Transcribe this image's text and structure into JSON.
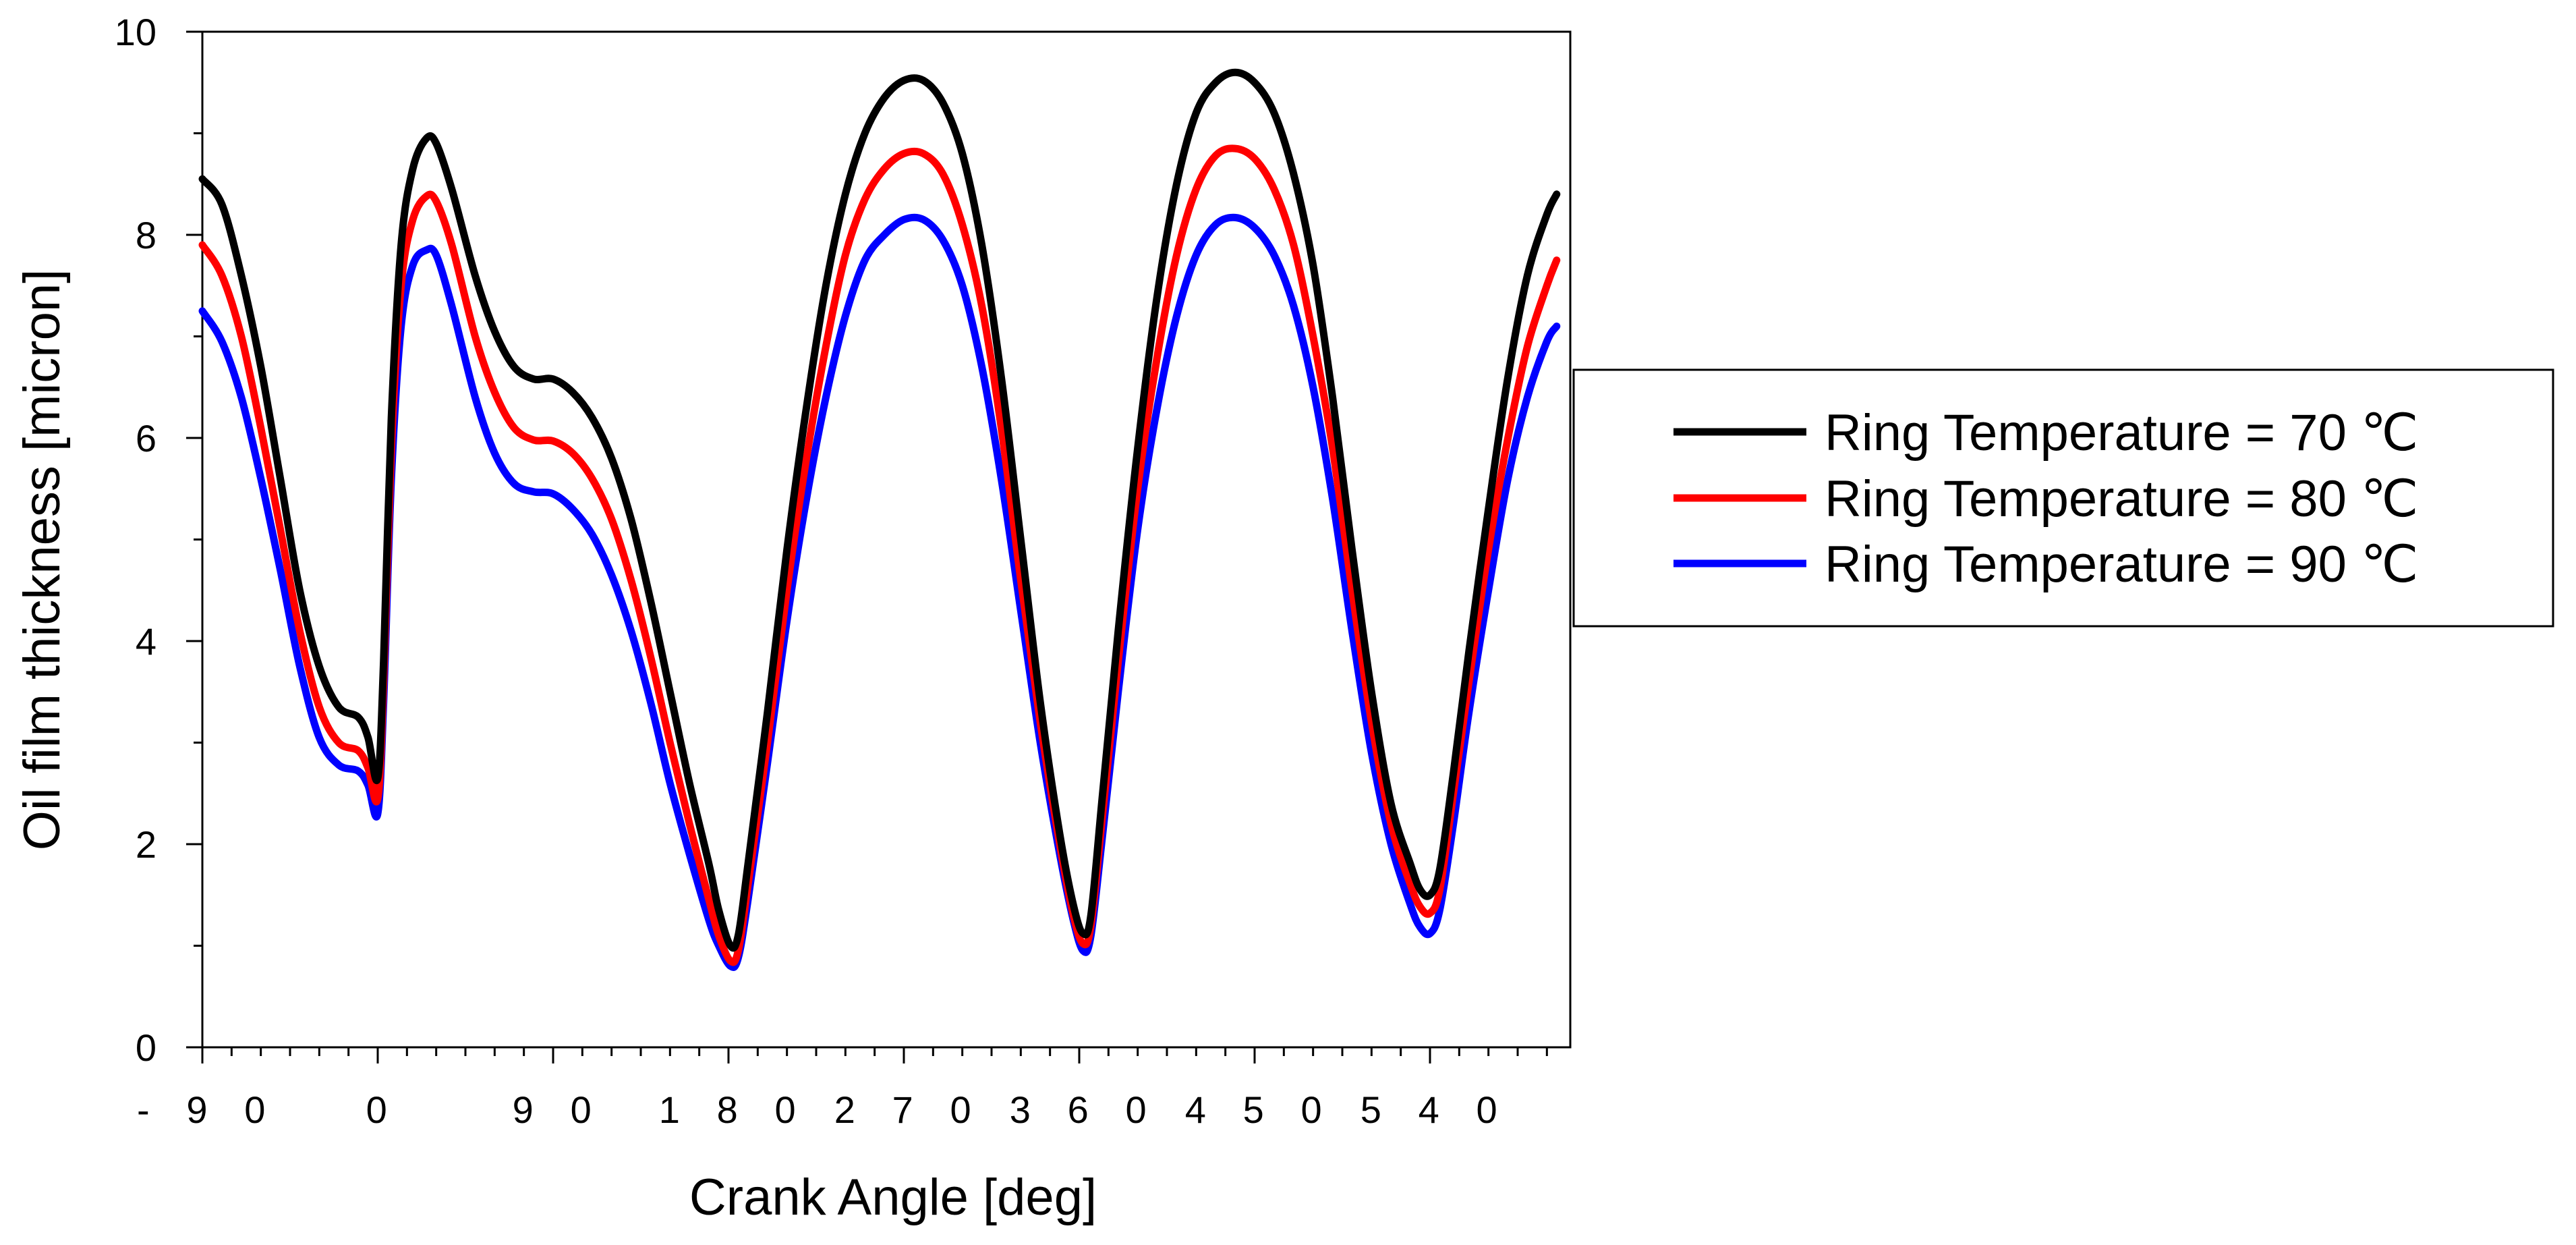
{
  "chart_data": {
    "type": "line",
    "title": "",
    "xlabel": "Crank Angle [deg]",
    "ylabel": "Oil film thickness [micron]",
    "xlim": [
      -90,
      612
    ],
    "ylim": [
      0,
      10
    ],
    "x_ticks": [
      -90,
      0,
      90,
      180,
      270,
      360,
      450,
      540
    ],
    "x_tick_labels": [
      "- 9 0",
      "0",
      "9 0",
      "1 8 0",
      "2 7 0",
      "3 6 0",
      "4 5 0",
      "5 4 0"
    ],
    "y_ticks": [
      0,
      2,
      4,
      6,
      8,
      10
    ],
    "y_tick_labels": [
      "0",
      "2",
      "4",
      "6",
      "8",
      "10"
    ],
    "grid": false,
    "legend_position": "right",
    "series": [
      {
        "name": "Ring Temperature = 70 ℃",
        "color": "#000000",
        "points": [
          [
            -90,
            8.55
          ],
          [
            -80,
            8.3
          ],
          [
            -70,
            7.6
          ],
          [
            -60,
            6.7
          ],
          [
            -50,
            5.6
          ],
          [
            -40,
            4.5
          ],
          [
            -30,
            3.75
          ],
          [
            -20,
            3.35
          ],
          [
            -10,
            3.25
          ],
          [
            -5,
            3.05
          ],
          [
            0,
            2.65
          ],
          [
            3,
            3.8
          ],
          [
            7,
            6.2
          ],
          [
            12,
            7.9
          ],
          [
            18,
            8.65
          ],
          [
            25,
            8.95
          ],
          [
            30,
            8.9
          ],
          [
            38,
            8.45
          ],
          [
            50,
            7.6
          ],
          [
            60,
            7.05
          ],
          [
            70,
            6.7
          ],
          [
            80,
            6.58
          ],
          [
            90,
            6.58
          ],
          [
            100,
            6.45
          ],
          [
            110,
            6.2
          ],
          [
            120,
            5.8
          ],
          [
            130,
            5.2
          ],
          [
            140,
            4.4
          ],
          [
            150,
            3.5
          ],
          [
            160,
            2.6
          ],
          [
            170,
            1.8
          ],
          [
            175,
            1.35
          ],
          [
            181,
            1.0
          ],
          [
            185,
            1.1
          ],
          [
            190,
            1.8
          ],
          [
            200,
            3.3
          ],
          [
            210,
            4.9
          ],
          [
            220,
            6.3
          ],
          [
            230,
            7.5
          ],
          [
            240,
            8.4
          ],
          [
            250,
            9.0
          ],
          [
            260,
            9.35
          ],
          [
            270,
            9.52
          ],
          [
            280,
            9.52
          ],
          [
            290,
            9.3
          ],
          [
            300,
            8.8
          ],
          [
            310,
            7.9
          ],
          [
            320,
            6.6
          ],
          [
            330,
            5.0
          ],
          [
            340,
            3.4
          ],
          [
            350,
            2.1
          ],
          [
            357,
            1.4
          ],
          [
            362,
            1.12
          ],
          [
            366,
            1.3
          ],
          [
            372,
            2.5
          ],
          [
            380,
            4.1
          ],
          [
            390,
            5.9
          ],
          [
            400,
            7.4
          ],
          [
            410,
            8.5
          ],
          [
            420,
            9.2
          ],
          [
            430,
            9.5
          ],
          [
            440,
            9.6
          ],
          [
            450,
            9.5
          ],
          [
            460,
            9.2
          ],
          [
            470,
            8.6
          ],
          [
            480,
            7.7
          ],
          [
            490,
            6.4
          ],
          [
            500,
            4.9
          ],
          [
            510,
            3.5
          ],
          [
            520,
            2.4
          ],
          [
            530,
            1.8
          ],
          [
            535,
            1.55
          ],
          [
            540,
            1.5
          ],
          [
            545,
            1.75
          ],
          [
            552,
            2.7
          ],
          [
            560,
            3.9
          ],
          [
            570,
            5.3
          ],
          [
            580,
            6.6
          ],
          [
            590,
            7.6
          ],
          [
            600,
            8.2
          ],
          [
            605,
            8.4
          ]
        ]
      },
      {
        "name": "Ring Temperature = 80 ℃",
        "color": "#ff0000",
        "points": [
          [
            -90,
            7.9
          ],
          [
            -80,
            7.6
          ],
          [
            -70,
            7.0
          ],
          [
            -60,
            6.1
          ],
          [
            -50,
            5.1
          ],
          [
            -40,
            4.1
          ],
          [
            -30,
            3.35
          ],
          [
            -20,
            3.0
          ],
          [
            -10,
            2.92
          ],
          [
            -5,
            2.75
          ],
          [
            0,
            2.45
          ],
          [
            3,
            3.6
          ],
          [
            7,
            5.9
          ],
          [
            12,
            7.5
          ],
          [
            18,
            8.15
          ],
          [
            25,
            8.38
          ],
          [
            30,
            8.33
          ],
          [
            38,
            7.9
          ],
          [
            50,
            7.0
          ],
          [
            60,
            6.45
          ],
          [
            70,
            6.1
          ],
          [
            80,
            5.98
          ],
          [
            90,
            5.97
          ],
          [
            100,
            5.85
          ],
          [
            110,
            5.6
          ],
          [
            120,
            5.2
          ],
          [
            130,
            4.6
          ],
          [
            140,
            3.85
          ],
          [
            150,
            3.0
          ],
          [
            160,
            2.2
          ],
          [
            170,
            1.45
          ],
          [
            175,
            1.1
          ],
          [
            181,
            0.85
          ],
          [
            185,
            0.95
          ],
          [
            190,
            1.6
          ],
          [
            200,
            3.0
          ],
          [
            210,
            4.5
          ],
          [
            220,
            5.8
          ],
          [
            230,
            6.9
          ],
          [
            240,
            7.8
          ],
          [
            250,
            8.35
          ],
          [
            260,
            8.65
          ],
          [
            270,
            8.8
          ],
          [
            280,
            8.8
          ],
          [
            290,
            8.6
          ],
          [
            300,
            8.1
          ],
          [
            310,
            7.3
          ],
          [
            320,
            6.1
          ],
          [
            330,
            4.6
          ],
          [
            340,
            3.2
          ],
          [
            350,
            2.0
          ],
          [
            357,
            1.3
          ],
          [
            362,
            1.02
          ],
          [
            366,
            1.2
          ],
          [
            372,
            2.3
          ],
          [
            380,
            3.8
          ],
          [
            390,
            5.5
          ],
          [
            400,
            6.8
          ],
          [
            410,
            7.8
          ],
          [
            420,
            8.45
          ],
          [
            430,
            8.78
          ],
          [
            440,
            8.85
          ],
          [
            450,
            8.75
          ],
          [
            460,
            8.45
          ],
          [
            470,
            7.9
          ],
          [
            480,
            7.0
          ],
          [
            490,
            5.9
          ],
          [
            500,
            4.5
          ],
          [
            510,
            3.2
          ],
          [
            520,
            2.2
          ],
          [
            530,
            1.6
          ],
          [
            535,
            1.38
          ],
          [
            540,
            1.32
          ],
          [
            545,
            1.55
          ],
          [
            552,
            2.5
          ],
          [
            560,
            3.6
          ],
          [
            570,
            4.9
          ],
          [
            580,
            6.0
          ],
          [
            590,
            6.9
          ],
          [
            600,
            7.5
          ],
          [
            605,
            7.75
          ]
        ]
      },
      {
        "name": "Ring Temperature = 90 ℃",
        "color": "#0000ff",
        "points": [
          [
            -90,
            7.25
          ],
          [
            -80,
            6.95
          ],
          [
            -70,
            6.4
          ],
          [
            -60,
            5.6
          ],
          [
            -50,
            4.7
          ],
          [
            -40,
            3.75
          ],
          [
            -30,
            3.05
          ],
          [
            -20,
            2.78
          ],
          [
            -10,
            2.72
          ],
          [
            -5,
            2.58
          ],
          [
            0,
            2.3
          ],
          [
            3,
            3.4
          ],
          [
            7,
            5.6
          ],
          [
            12,
            7.1
          ],
          [
            18,
            7.7
          ],
          [
            25,
            7.85
          ],
          [
            30,
            7.8
          ],
          [
            38,
            7.3
          ],
          [
            50,
            6.4
          ],
          [
            60,
            5.85
          ],
          [
            70,
            5.55
          ],
          [
            80,
            5.47
          ],
          [
            90,
            5.45
          ],
          [
            100,
            5.3
          ],
          [
            110,
            5.05
          ],
          [
            120,
            4.65
          ],
          [
            130,
            4.1
          ],
          [
            140,
            3.4
          ],
          [
            150,
            2.6
          ],
          [
            160,
            1.9
          ],
          [
            170,
            1.25
          ],
          [
            175,
            1.0
          ],
          [
            181,
            0.8
          ],
          [
            185,
            0.88
          ],
          [
            190,
            1.45
          ],
          [
            200,
            2.8
          ],
          [
            210,
            4.2
          ],
          [
            220,
            5.4
          ],
          [
            230,
            6.4
          ],
          [
            240,
            7.2
          ],
          [
            250,
            7.75
          ],
          [
            260,
            8.0
          ],
          [
            270,
            8.15
          ],
          [
            280,
            8.15
          ],
          [
            290,
            7.95
          ],
          [
            300,
            7.5
          ],
          [
            310,
            6.7
          ],
          [
            320,
            5.6
          ],
          [
            330,
            4.3
          ],
          [
            340,
            3.0
          ],
          [
            350,
            1.9
          ],
          [
            357,
            1.25
          ],
          [
            362,
            0.95
          ],
          [
            366,
            1.1
          ],
          [
            372,
            2.1
          ],
          [
            380,
            3.5
          ],
          [
            390,
            5.1
          ],
          [
            400,
            6.3
          ],
          [
            410,
            7.2
          ],
          [
            420,
            7.8
          ],
          [
            430,
            8.1
          ],
          [
            440,
            8.17
          ],
          [
            450,
            8.07
          ],
          [
            460,
            7.8
          ],
          [
            470,
            7.3
          ],
          [
            480,
            6.5
          ],
          [
            490,
            5.4
          ],
          [
            500,
            4.1
          ],
          [
            510,
            2.9
          ],
          [
            520,
            2.0
          ],
          [
            530,
            1.4
          ],
          [
            535,
            1.18
          ],
          [
            540,
            1.12
          ],
          [
            545,
            1.35
          ],
          [
            552,
            2.2
          ],
          [
            560,
            3.3
          ],
          [
            570,
            4.5
          ],
          [
            580,
            5.6
          ],
          [
            590,
            6.4
          ],
          [
            600,
            6.95
          ],
          [
            605,
            7.1
          ]
        ]
      }
    ]
  }
}
